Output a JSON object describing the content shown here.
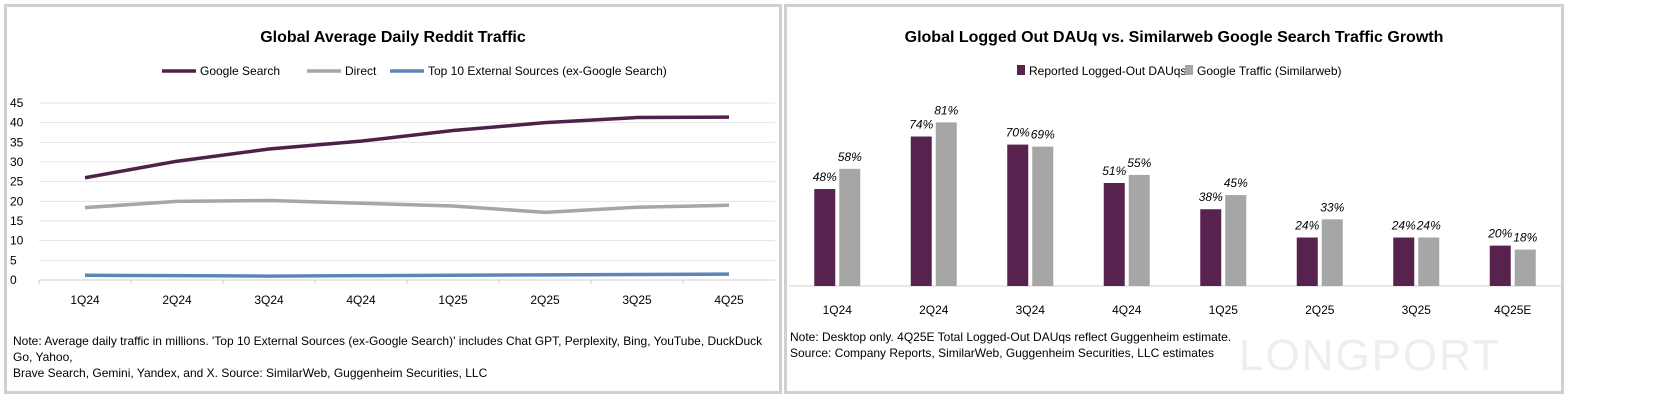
{
  "chart_data": [
    {
      "type": "line",
      "title": "Global Average Daily Reddit Traffic",
      "categories": [
        "1Q24",
        "2Q24",
        "3Q24",
        "4Q24",
        "1Q25",
        "2Q25",
        "3Q25",
        "4Q25"
      ],
      "ylim": [
        0,
        45
      ],
      "yticks": [
        0,
        5,
        10,
        15,
        20,
        25,
        30,
        35,
        40,
        45
      ],
      "grid": true,
      "legend": "top-center",
      "series": [
        {
          "name": "Google Search",
          "color": "#4f2148",
          "values": [
            26,
            30.2,
            33.3,
            35.3,
            38,
            40,
            41.3,
            41.4
          ]
        },
        {
          "name": "Direct",
          "color": "#a6a6a6",
          "values": [
            18.4,
            20,
            20.2,
            19.5,
            18.8,
            17.2,
            18.5,
            19
          ]
        },
        {
          "name": "Top 10 External Sources (ex-Google Search)",
          "color": "#5b86b5",
          "values": [
            1.2,
            1.1,
            1.0,
            1.1,
            1.2,
            1.3,
            1.4,
            1.5
          ]
        }
      ],
      "note": [
        "Note: Average daily traffic in millions. 'Top 10 External Sources (ex-Google Search)' includes Chat GPT, Perplexity, Bing, YouTube, DuckDuck Go, Yahoo,",
        "Brave Search, Gemini, Yandex, and X. Source: SimilarWeb, Guggenheim Securities, LLC"
      ]
    },
    {
      "type": "bar",
      "title": "Global Logged Out DAUq vs. Similarweb Google Search Traffic Growth",
      "categories": [
        "1Q24",
        "2Q24",
        "3Q24",
        "4Q24",
        "1Q25",
        "2Q25",
        "3Q25",
        "4Q25E"
      ],
      "legend": "top-center",
      "ylim": [
        0,
        90
      ],
      "series": [
        {
          "name": "Reported Logged-Out DAUqs",
          "color": "#58224f",
          "values": [
            48,
            74,
            70,
            51,
            38,
            24,
            24,
            20
          ],
          "labels": [
            "48%",
            "74%",
            "70%",
            "51%",
            "38%",
            "24%",
            "24%",
            "20%"
          ]
        },
        {
          "name": "Google Traffic (Similarweb)",
          "color": "#a6a6a6",
          "values": [
            58,
            81,
            69,
            55,
            45,
            33,
            24,
            18
          ],
          "labels": [
            "58%",
            "81%",
            "69%",
            "55%",
            "45%",
            "33%",
            "24%",
            "18%"
          ]
        }
      ],
      "note": [
        "Note: Desktop only. 4Q25E Total Logged-Out DAUqs reflect Guggenheim estimate.",
        "Source: Company Reports, SimilarWeb, Guggenheim Securities, LLC estimates"
      ]
    }
  ],
  "watermark": "LONGPORT"
}
